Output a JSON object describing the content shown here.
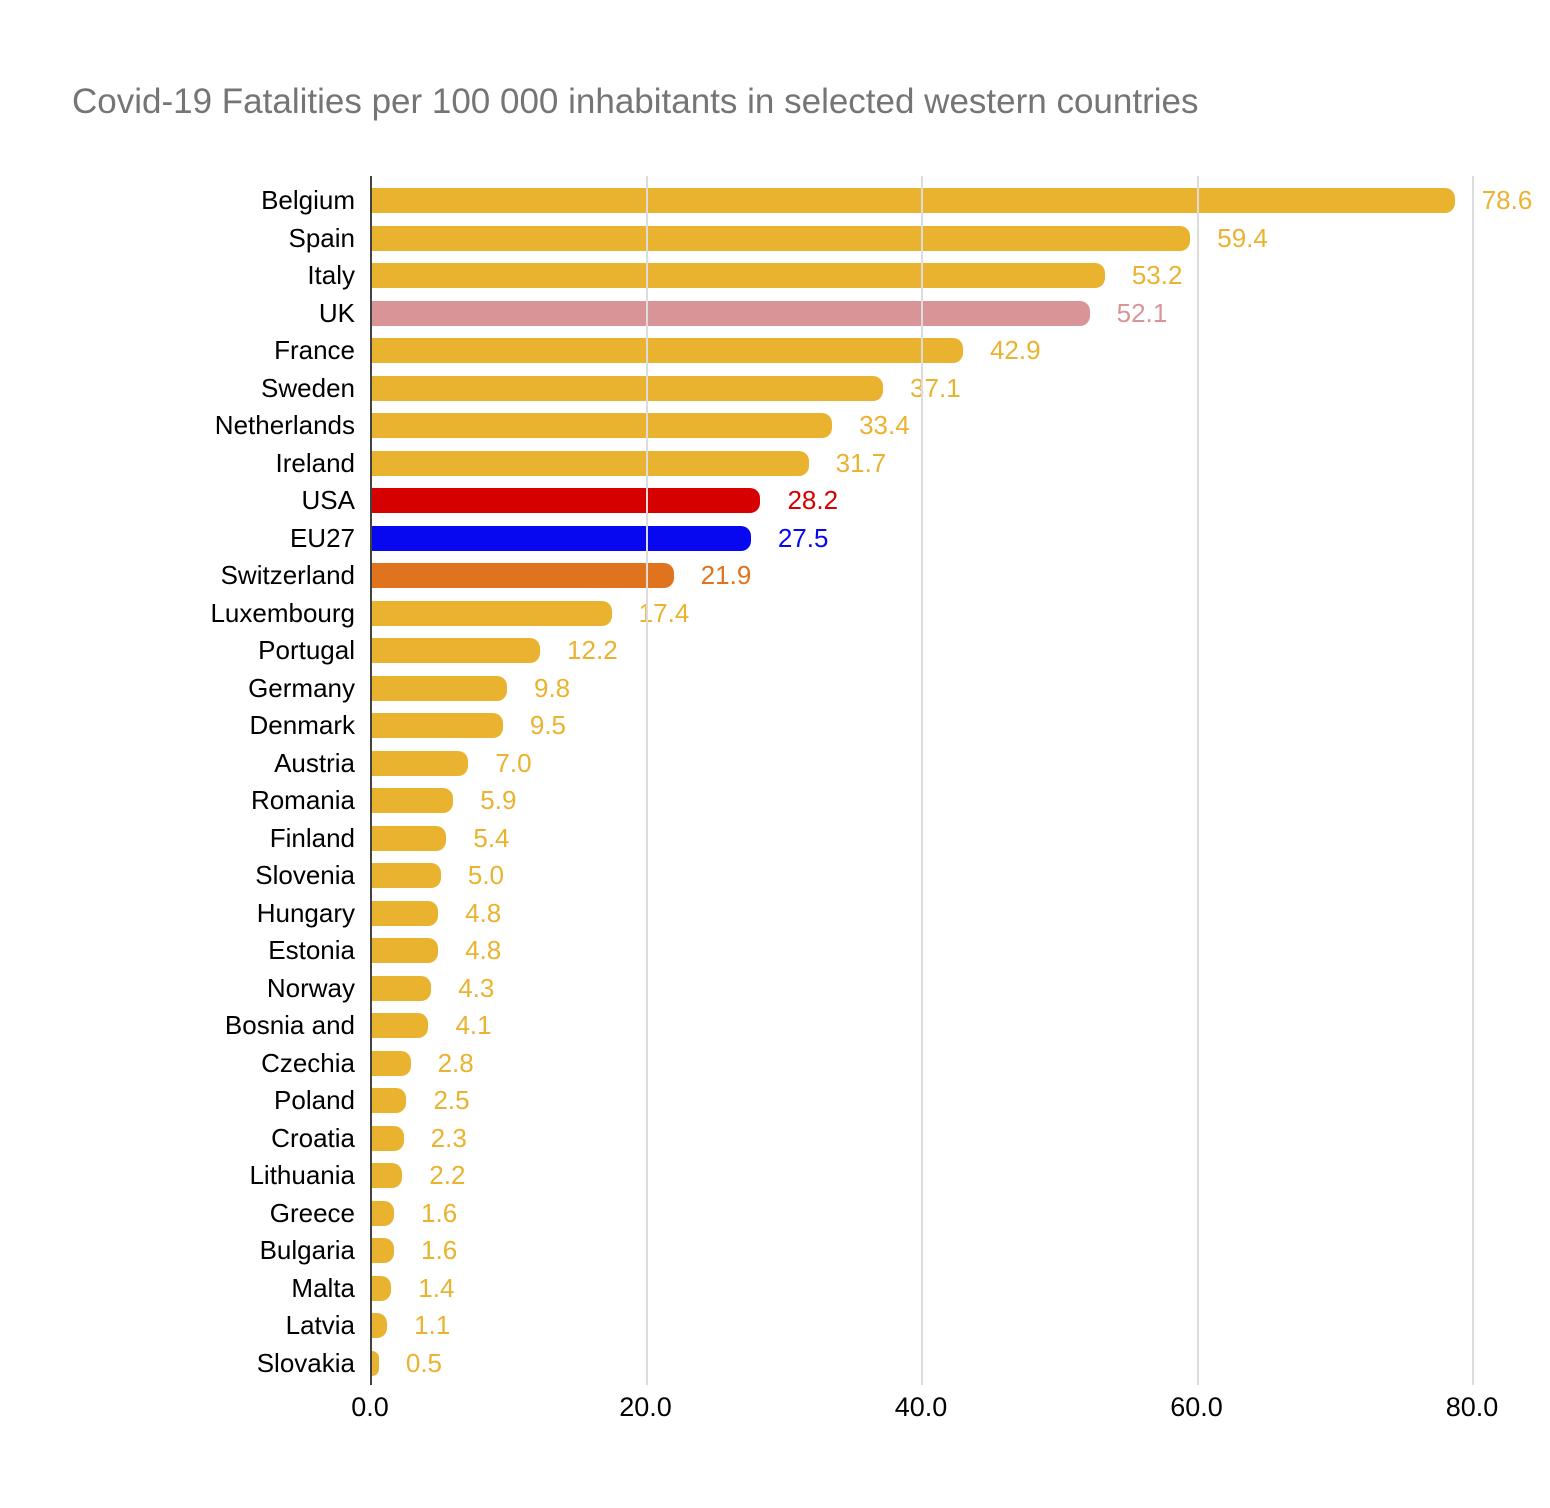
{
  "chart": {
    "title": "Covid-19 Fatalities per 100 000 inhabitants in selected western countries"
  },
  "colors": {
    "default_bar": "#E9B330",
    "uk_bar": "#D99498",
    "usa_bar": "#D60000",
    "eu27_bar": "#0808F0",
    "switzerland_bar": "#E0731D",
    "title_text": "#757575",
    "axis_text": "#000000",
    "gridline": "#DCDCDC",
    "axis_line": "#424242",
    "background": "#FFFFFF"
  },
  "chart_data": {
    "type": "bar",
    "orientation": "horizontal",
    "title": "Covid-19 Fatalities per 100 000 inhabitants in selected western countries",
    "xlabel": "",
    "ylabel": "",
    "xlim": [
      0,
      82
    ],
    "x_ticks": [
      0,
      20,
      40,
      60,
      80
    ],
    "x_tick_labels": [
      "0.0",
      "20.0",
      "40.0",
      "60.0",
      "80.0"
    ],
    "grid": "vertical-gridlines-on",
    "legend": "none",
    "value_labels_shown": true,
    "categories": [
      "Belgium",
      "Spain",
      "Italy",
      "UK",
      "France",
      "Sweden",
      "Netherlands",
      "Ireland",
      "USA",
      "EU27",
      "Switzerland",
      "Luxembourg",
      "Portugal",
      "Germany",
      "Denmark",
      "Austria",
      "Romania",
      "Finland",
      "Slovenia",
      "Hungary",
      "Estonia",
      "Norway",
      "Bosnia and",
      "Czechia",
      "Poland",
      "Croatia",
      "Lithuania",
      "Greece",
      "Bulgaria",
      "Malta",
      "Latvia",
      "Slovakia"
    ],
    "values": [
      78.6,
      59.4,
      53.2,
      52.1,
      42.9,
      37.1,
      33.4,
      31.7,
      28.2,
      27.5,
      21.9,
      17.4,
      12.2,
      9.8,
      9.5,
      7.0,
      5.9,
      5.4,
      5.0,
      4.8,
      4.8,
      4.3,
      4.1,
      2.8,
      2.5,
      2.3,
      2.2,
      1.6,
      1.6,
      1.4,
      1.1,
      0.5
    ],
    "value_labels": [
      "78.6",
      "59.4",
      "53.2",
      "52.1",
      "42.9",
      "37.1",
      "33.4",
      "31.7",
      "28.2",
      "27.5",
      "21.9",
      "17.4",
      "12.2",
      "9.8",
      "9.5",
      "7.0",
      "5.9",
      "5.4",
      "5.0",
      "4.8",
      "4.8",
      "4.3",
      "4.1",
      "2.8",
      "2.5",
      "2.3",
      "2.2",
      "1.6",
      "1.6",
      "1.4",
      "1.1",
      "0.5"
    ],
    "bar_colors": [
      "#E9B330",
      "#E9B330",
      "#E9B330",
      "#D99498",
      "#E9B330",
      "#E9B330",
      "#E9B330",
      "#E9B330",
      "#D60000",
      "#0808F0",
      "#E0731D",
      "#E9B330",
      "#E9B330",
      "#E9B330",
      "#E9B330",
      "#E9B330",
      "#E9B330",
      "#E9B330",
      "#E9B330",
      "#E9B330",
      "#E9B330",
      "#E9B330",
      "#E9B330",
      "#E9B330",
      "#E9B330",
      "#E9B330",
      "#E9B330",
      "#E9B330",
      "#E9B330",
      "#E9B330",
      "#E9B330",
      "#E9B330"
    ]
  }
}
